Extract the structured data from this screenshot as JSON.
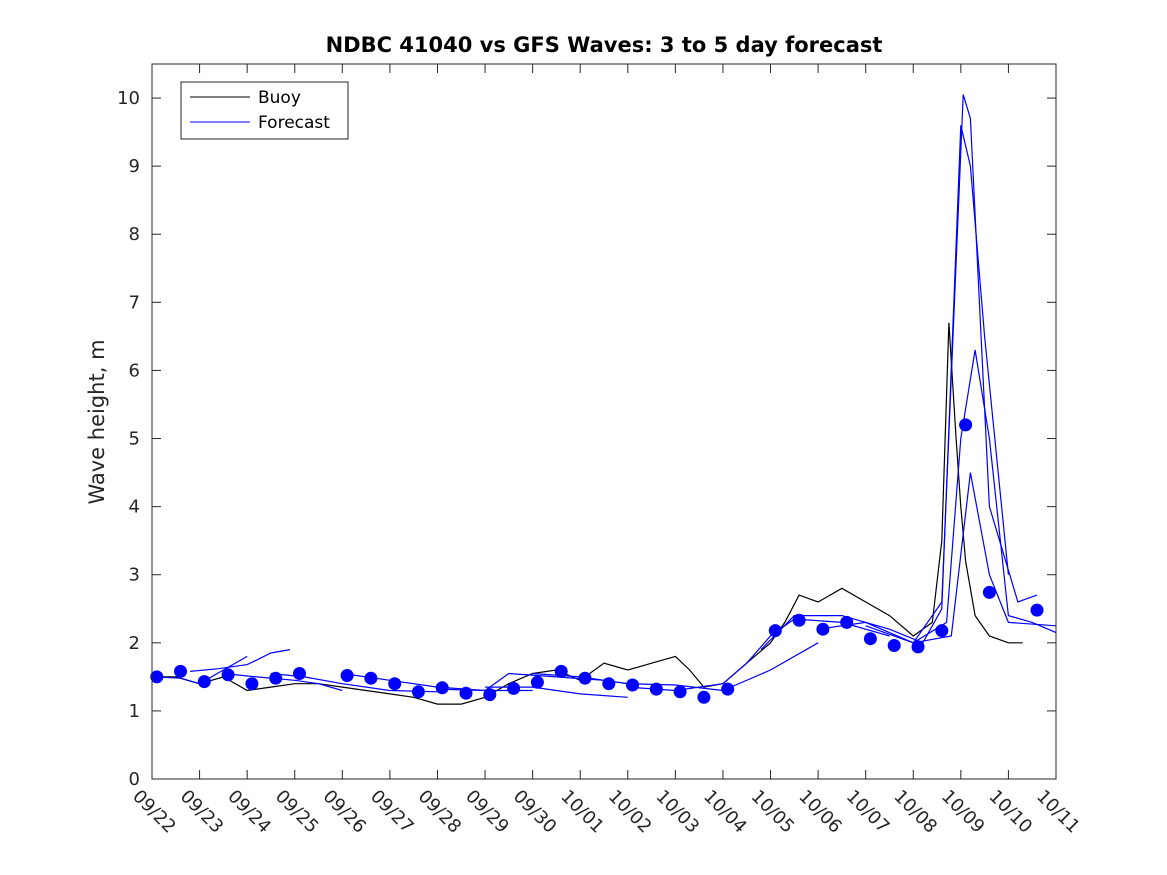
{
  "chart_data": {
    "type": "line",
    "title": "NDBC 41040 vs GFS Waves: 3 to 5 day forecast",
    "xlabel": "",
    "ylabel": "Wave height, m",
    "x_ticks": [
      "09/22",
      "09/23",
      "09/24",
      "09/25",
      "09/26",
      "09/27",
      "09/28",
      "09/29",
      "09/30",
      "10/01",
      "10/02",
      "10/03",
      "10/04",
      "10/05",
      "10/06",
      "10/07",
      "10/08",
      "10/09",
      "10/10",
      "10/11"
    ],
    "xlim_days": [
      0,
      19
    ],
    "ylim": [
      0,
      10.5
    ],
    "y_ticks": [
      0,
      1,
      2,
      3,
      4,
      5,
      6,
      7,
      8,
      9,
      10
    ],
    "grid": false,
    "legend_position": "top-left",
    "legend": [
      {
        "label": "Buoy",
        "color": "#000000"
      },
      {
        "label": "Forecast",
        "color": "#0000ff"
      }
    ],
    "colors": {
      "buoy": "#000000",
      "forecast": "#0000ff",
      "marker": "#0000ff"
    },
    "series": [
      {
        "name": "Buoy",
        "points": [
          [
            0,
            1.5
          ],
          [
            0.5,
            1.5
          ],
          [
            1,
            1.4
          ],
          [
            1.5,
            1.5
          ],
          [
            2,
            1.3
          ],
          [
            2.5,
            1.35
          ],
          [
            3,
            1.4
          ],
          [
            3.5,
            1.4
          ],
          [
            4,
            1.35
          ],
          [
            4.5,
            1.3
          ],
          [
            5,
            1.25
          ],
          [
            5.5,
            1.2
          ],
          [
            6,
            1.1
          ],
          [
            6.5,
            1.1
          ],
          [
            7,
            1.2
          ],
          [
            7.5,
            1.4
          ],
          [
            8,
            1.55
          ],
          [
            8.5,
            1.6
          ],
          [
            9,
            1.45
          ],
          [
            9.5,
            1.7
          ],
          [
            10,
            1.6
          ],
          [
            10.5,
            1.7
          ],
          [
            11,
            1.8
          ],
          [
            11.3,
            1.6
          ],
          [
            11.6,
            1.35
          ],
          [
            12,
            1.4
          ],
          [
            12.5,
            1.7
          ],
          [
            13,
            2.0
          ],
          [
            13.3,
            2.3
          ],
          [
            13.6,
            2.7
          ],
          [
            14,
            2.6
          ],
          [
            14.5,
            2.8
          ],
          [
            15,
            2.6
          ],
          [
            15.5,
            2.4
          ],
          [
            16,
            2.1
          ],
          [
            16.4,
            2.3
          ],
          [
            16.6,
            3.5
          ],
          [
            16.75,
            6.7
          ],
          [
            16.9,
            5.0
          ],
          [
            17.0,
            4.0
          ],
          [
            17.1,
            3.2
          ],
          [
            17.3,
            2.4
          ],
          [
            17.6,
            2.1
          ],
          [
            18,
            2.0
          ],
          [
            18.3,
            2.0
          ]
        ]
      },
      {
        "name": "Forecast",
        "segments": [
          [
            [
              0,
              1.5
            ],
            [
              0.6,
              1.48
            ],
            [
              1,
              1.4
            ],
            [
              1.5,
              1.6
            ],
            [
              2,
              1.8
            ]
          ],
          [
            [
              0.8,
              1.58
            ],
            [
              1.4,
              1.62
            ],
            [
              2,
              1.68
            ],
            [
              2.5,
              1.85
            ],
            [
              2.9,
              1.9
            ]
          ],
          [
            [
              1.5,
              1.55
            ],
            [
              2.2,
              1.5
            ],
            [
              3,
              1.45
            ],
            [
              3.5,
              1.4
            ],
            [
              4,
              1.3
            ]
          ],
          [
            [
              2.5,
              1.55
            ],
            [
              3.2,
              1.5
            ],
            [
              4,
              1.4
            ],
            [
              5,
              1.3
            ],
            [
              6,
              1.28
            ]
          ],
          [
            [
              4,
              1.55
            ],
            [
              5,
              1.45
            ],
            [
              6,
              1.35
            ],
            [
              7,
              1.3
            ],
            [
              8,
              1.3
            ]
          ],
          [
            [
              6,
              1.32
            ],
            [
              7,
              1.3
            ],
            [
              7.5,
              1.55
            ],
            [
              8.5,
              1.5
            ],
            [
              9.5,
              1.45
            ],
            [
              10,
              1.4
            ]
          ],
          [
            [
              7,
              1.35
            ],
            [
              8,
              1.35
            ],
            [
              9,
              1.25
            ],
            [
              10,
              1.2
            ]
          ],
          [
            [
              8,
              1.55
            ],
            [
              9,
              1.5
            ],
            [
              10,
              1.4
            ],
            [
              11,
              1.38
            ],
            [
              12,
              1.3
            ],
            [
              13,
              1.6
            ],
            [
              14,
              2.0
            ]
          ],
          [
            [
              10,
              1.35
            ],
            [
              11,
              1.3
            ],
            [
              12,
              1.4
            ],
            [
              12.5,
              1.7
            ],
            [
              13,
              2.1
            ],
            [
              13.5,
              2.35
            ],
            [
              14.5,
              2.3
            ],
            [
              15.5,
              2.1
            ]
          ],
          [
            [
              12.8,
              1.9
            ],
            [
              13.5,
              2.4
            ],
            [
              14.5,
              2.4
            ],
            [
              15.5,
              2.2
            ],
            [
              16.2,
              2.0
            ],
            [
              16.6,
              2.5
            ],
            [
              17,
              9.6
            ],
            [
              17.2,
              9.0
            ],
            [
              17.5,
              6.5
            ],
            [
              18,
              3.0
            ]
          ],
          [
            [
              14,
              2.2
            ],
            [
              15,
              2.3
            ],
            [
              16,
              2.0
            ],
            [
              16.6,
              2.6
            ],
            [
              17.05,
              10.05
            ],
            [
              17.2,
              9.7
            ],
            [
              17.6,
              4.0
            ],
            [
              18.2,
              2.6
            ],
            [
              18.6,
              2.7
            ]
          ],
          [
            [
              15,
              2.25
            ],
            [
              16,
              2.0
            ],
            [
              16.7,
              2.3
            ],
            [
              17.0,
              5.0
            ],
            [
              17.3,
              6.3
            ],
            [
              17.6,
              5.0
            ],
            [
              18,
              2.4
            ],
            [
              18.5,
              2.3
            ],
            [
              19,
              2.15
            ]
          ],
          [
            [
              16,
              2.0
            ],
            [
              16.8,
              2.1
            ],
            [
              17.2,
              4.5
            ],
            [
              17.6,
              3.0
            ],
            [
              18,
              2.3
            ],
            [
              19,
              2.25
            ]
          ]
        ]
      },
      {
        "name": "Forecast markers",
        "points": [
          [
            0.1,
            1.5
          ],
          [
            0.6,
            1.58
          ],
          [
            1.1,
            1.43
          ],
          [
            1.6,
            1.53
          ],
          [
            2.1,
            1.4
          ],
          [
            2.6,
            1.48
          ],
          [
            3.1,
            1.55
          ],
          [
            4.1,
            1.52
          ],
          [
            4.6,
            1.48
          ],
          [
            5.1,
            1.4
          ],
          [
            5.6,
            1.28
          ],
          [
            6.1,
            1.34
          ],
          [
            6.6,
            1.26
          ],
          [
            7.1,
            1.24
          ],
          [
            7.6,
            1.33
          ],
          [
            8.1,
            1.42
          ],
          [
            8.6,
            1.58
          ],
          [
            9.1,
            1.48
          ],
          [
            9.6,
            1.4
          ],
          [
            10.1,
            1.38
          ],
          [
            10.6,
            1.32
          ],
          [
            11.1,
            1.28
          ],
          [
            11.6,
            1.2
          ],
          [
            12.1,
            1.32
          ],
          [
            13.1,
            2.18
          ],
          [
            13.6,
            2.33
          ],
          [
            14.1,
            2.2
          ],
          [
            14.6,
            2.3
          ],
          [
            15.1,
            2.06
          ],
          [
            15.6,
            1.96
          ],
          [
            16.1,
            1.94
          ],
          [
            16.6,
            2.18
          ],
          [
            17.1,
            5.2
          ],
          [
            17.6,
            2.74
          ],
          [
            18.6,
            2.48
          ]
        ]
      }
    ]
  }
}
